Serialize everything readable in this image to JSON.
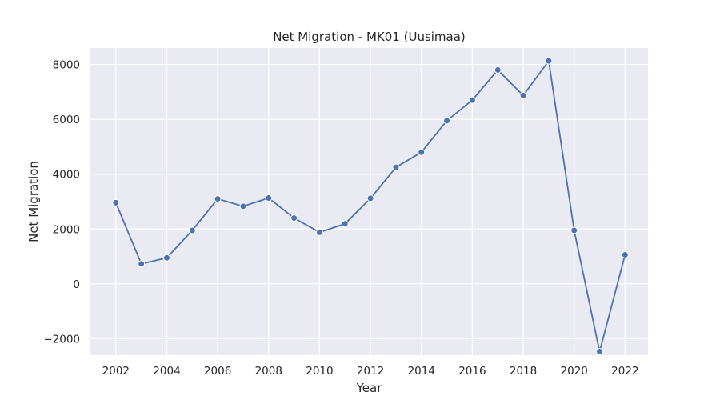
{
  "chart_data": {
    "type": "line",
    "title": "Net Migration - MK01 (Uusimaa)",
    "xlabel": "Year",
    "ylabel": "Net Migration",
    "xlim": [
      2001.0,
      2022.9
    ],
    "ylim": [
      -2600,
      8600
    ],
    "xticks": [
      2002,
      2004,
      2006,
      2008,
      2010,
      2012,
      2014,
      2016,
      2018,
      2020,
      2022
    ],
    "yticks": [
      -2000,
      0,
      2000,
      4000,
      6000,
      8000
    ],
    "ytick_labels": [
      "−2000",
      "0",
      "2000",
      "4000",
      "6000",
      "8000"
    ],
    "grid": true,
    "series": [
      {
        "color": "#4c72b0",
        "x": [
          2002,
          2003,
          2004,
          2005,
          2006,
          2007,
          2008,
          2009,
          2010,
          2011,
          2012,
          2013,
          2014,
          2015,
          2016,
          2017,
          2018,
          2019,
          2020,
          2021,
          2022
        ],
        "y": [
          2960,
          730,
          950,
          1950,
          3100,
          2830,
          3130,
          2400,
          1880,
          2190,
          3120,
          4250,
          4800,
          5950,
          6700,
          7800,
          6870,
          8130,
          1950,
          -2470,
          1060
        ]
      }
    ]
  }
}
